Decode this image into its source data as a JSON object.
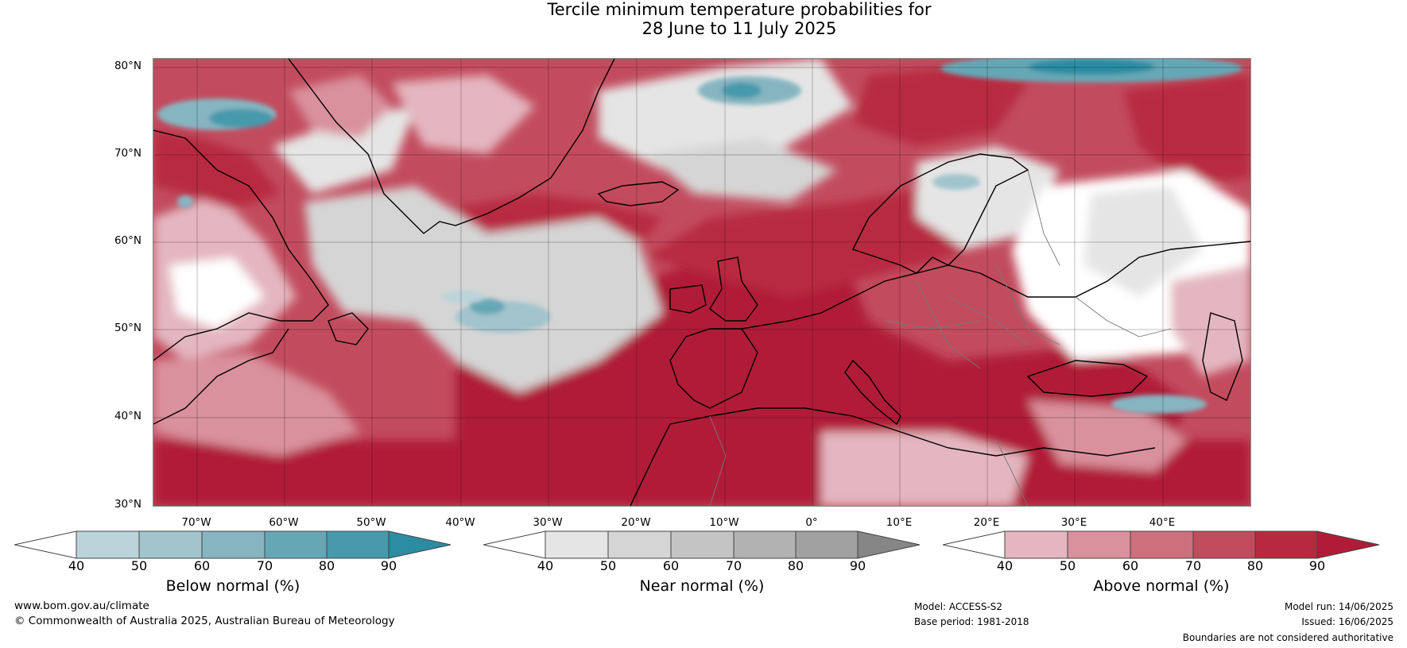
{
  "title": {
    "line1": "Tercile minimum temperature probabilities for",
    "line2": "28 June to 11 July 2025"
  },
  "map": {
    "lat_labels": [
      "80°N",
      "70°N",
      "60°N",
      "50°N",
      "40°N",
      "30°N"
    ],
    "lon_labels": [
      "70°W",
      "60°W",
      "50°W",
      "40°W",
      "30°W",
      "20°W",
      "10°W",
      "0°",
      "10°E",
      "20°E",
      "30°E",
      "40°E"
    ]
  },
  "colorbars": [
    {
      "label": "Below normal (%)",
      "ticks": [
        "40",
        "50",
        "60",
        "70",
        "80",
        "90"
      ],
      "colors": [
        "#ffffff",
        "#bbd3da",
        "#a2c4cd",
        "#86b5c1",
        "#66a7b6",
        "#4799ac",
        "#2b8ca2"
      ]
    },
    {
      "label": "Near normal (%)",
      "ticks": [
        "40",
        "50",
        "60",
        "70",
        "80",
        "90"
      ],
      "colors": [
        "#ffffff",
        "#e5e5e5",
        "#d5d5d5",
        "#c4c4c4",
        "#b2b2b2",
        "#a1a1a1",
        "#868686"
      ]
    },
    {
      "label": "Above normal (%)",
      "ticks": [
        "40",
        "50",
        "60",
        "70",
        "80",
        "90"
      ],
      "colors": [
        "#ffffff",
        "#e4b6bf",
        "#d9919d",
        "#cd6f7d",
        "#c24c5e",
        "#b8293f",
        "#b01c37"
      ]
    }
  ],
  "footer": {
    "website": "www.bom.gov.au/climate",
    "copyright": "© Commonwealth of Australia 2025, Australian Bureau of Meteorology",
    "model": "Model: ACCESS-S2",
    "base_period": "Base period: 1981-2018",
    "model_run": "Model run: 14/06/2025",
    "issued": "Issued: 16/06/2025",
    "disclaimer": "Boundaries are not considered authoritative"
  }
}
